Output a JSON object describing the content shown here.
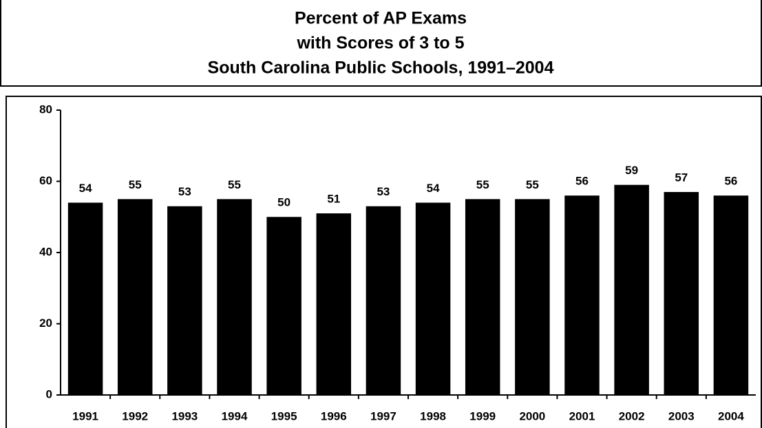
{
  "chart_data": {
    "type": "bar",
    "title": [
      "Percent of AP Exams",
      "with Scores of 3 to 5",
      "South Carolina Public Schools, 1991–2004"
    ],
    "categories": [
      "1991",
      "1992",
      "1993",
      "1994",
      "1995",
      "1996",
      "1997",
      "1998",
      "1999",
      "2000",
      "2001",
      "2002",
      "2003",
      "2004"
    ],
    "values": [
      54,
      55,
      53,
      55,
      50,
      51,
      53,
      54,
      55,
      55,
      56,
      59,
      57,
      56
    ],
    "color": "#000000",
    "ylim": [
      0,
      80
    ],
    "yticks": [
      0,
      20,
      40,
      60,
      80
    ],
    "grid": false
  }
}
